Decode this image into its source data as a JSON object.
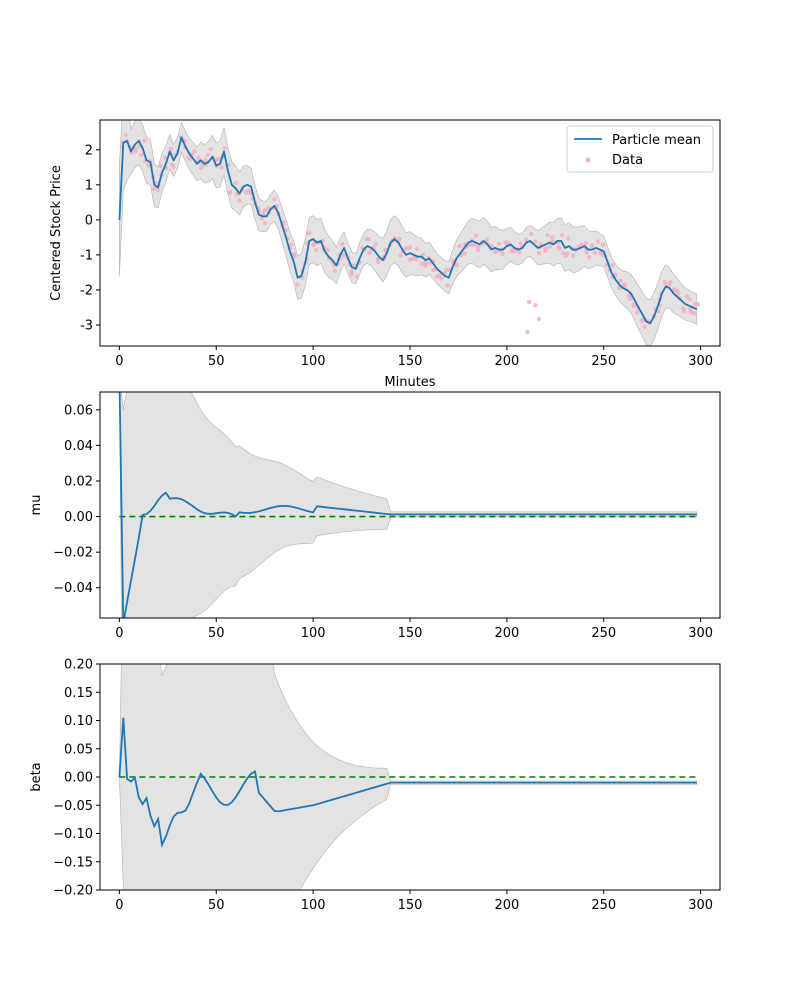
{
  "chart_data": [
    {
      "type": "line",
      "xlabel": "Minutes",
      "ylabel": "Centered Stock Price",
      "xlim": [
        -10,
        310
      ],
      "ylim": [
        -3.6,
        2.85
      ],
      "xticks": [
        0,
        50,
        100,
        150,
        200,
        250,
        300
      ],
      "yticks": [
        -3,
        -2,
        -1,
        0,
        1,
        2
      ],
      "legend_position": "upper right",
      "legend": [
        {
          "label": "Particle mean",
          "kind": "line",
          "color": "#1f77b4"
        },
        {
          "label": "Data",
          "kind": "marker",
          "color": "#f4aec2"
        }
      ],
      "series": [
        {
          "name": "Particle mean",
          "color": "#1f77b4",
          "x": [
            0,
            2,
            4,
            6,
            8,
            10,
            12,
            14,
            16,
            18,
            20,
            22,
            24,
            26,
            28,
            30,
            32,
            34,
            36,
            38,
            40,
            42,
            44,
            46,
            48,
            50,
            52,
            54,
            56,
            58,
            60,
            62,
            64,
            66,
            68,
            70,
            72,
            74,
            76,
            78,
            80,
            82,
            84,
            86,
            88,
            90,
            92,
            94,
            96,
            98,
            100,
            102,
            104,
            106,
            108,
            110,
            112,
            114,
            116,
            118,
            120,
            122,
            124,
            126,
            128,
            130,
            132,
            134,
            136,
            138,
            140,
            142,
            144,
            146,
            148,
            150,
            152,
            154,
            156,
            158,
            160,
            162,
            164,
            166,
            168,
            170,
            172,
            174,
            176,
            178,
            180,
            182,
            184,
            186,
            188,
            190,
            192,
            194,
            196,
            198,
            200,
            202,
            204,
            206,
            208,
            210,
            212,
            214,
            216,
            218,
            220,
            222,
            224,
            226,
            228,
            230,
            232,
            234,
            236,
            238,
            240,
            242,
            244,
            246,
            248,
            250,
            252,
            254,
            256,
            258,
            260,
            262,
            264,
            266,
            268,
            270,
            272,
            274,
            276,
            278,
            280,
            282,
            284,
            286,
            288,
            290,
            292,
            294,
            296,
            298
          ],
          "y": [
            0.0,
            2.2,
            2.25,
            1.95,
            2.15,
            2.25,
            2.05,
            1.7,
            1.65,
            1.0,
            0.92,
            1.35,
            1.6,
            1.95,
            1.7,
            1.9,
            2.35,
            2.1,
            1.9,
            1.75,
            1.6,
            1.7,
            1.6,
            1.65,
            1.8,
            1.55,
            1.6,
            1.95,
            1.4,
            1.0,
            0.9,
            0.75,
            0.95,
            1.0,
            0.95,
            0.5,
            0.15,
            0.1,
            0.1,
            0.3,
            0.4,
            0.2,
            -0.15,
            -0.5,
            -0.9,
            -1.2,
            -1.65,
            -1.6,
            -1.2,
            -0.6,
            -0.55,
            -0.65,
            -0.6,
            -0.9,
            -1.05,
            -1.15,
            -1.3,
            -1.0,
            -0.8,
            -1.1,
            -1.35,
            -1.4,
            -1.1,
            -0.85,
            -0.75,
            -0.8,
            -0.9,
            -1.05,
            -1.15,
            -0.95,
            -0.65,
            -0.55,
            -0.65,
            -0.85,
            -1.0,
            -0.95,
            -1.0,
            -1.05,
            -1.05,
            -1.15,
            -1.1,
            -1.25,
            -1.4,
            -1.5,
            -1.6,
            -1.65,
            -1.35,
            -1.1,
            -0.95,
            -0.8,
            -0.65,
            -0.6,
            -0.65,
            -0.7,
            -0.6,
            -0.7,
            -0.85,
            -0.8,
            -0.85,
            -0.85,
            -0.75,
            -0.7,
            -0.8,
            -0.85,
            -0.8,
            -0.65,
            -0.6,
            -0.7,
            -0.8,
            -0.75,
            -0.7,
            -0.65,
            -0.7,
            -0.6,
            -0.6,
            -0.8,
            -0.75,
            -0.85,
            -0.85,
            -0.8,
            -0.75,
            -0.85,
            -0.85,
            -0.8,
            -0.85,
            -0.9,
            -1.2,
            -1.5,
            -1.7,
            -1.85,
            -1.95,
            -2.0,
            -2.1,
            -2.3,
            -2.5,
            -2.7,
            -2.9,
            -2.95,
            -2.75,
            -2.45,
            -2.1,
            -1.9,
            -1.95,
            -2.1,
            -2.2,
            -2.3,
            -2.4,
            -2.45,
            -2.5,
            -2.55
          ],
          "note_unused": ""
        }
      ]
    },
    {
      "type": "line",
      "xlabel": "",
      "ylabel": "mu",
      "xlim": [
        -10,
        310
      ],
      "ylim": [
        -0.057,
        0.07
      ],
      "xticks": [
        0,
        50,
        100,
        150,
        200,
        250,
        300
      ],
      "yticks": [
        -0.04,
        -0.02,
        0.0,
        0.02,
        0.04,
        0.06
      ],
      "ytick_labels": [
        "−0.04",
        "−0.02",
        "0.00",
        "0.02",
        "0.04",
        "0.06"
      ]
    },
    {
      "type": "line",
      "xlabel": "",
      "ylabel": "beta",
      "xlim": [
        -10,
        310
      ],
      "ylim": [
        -0.2,
        0.2
      ],
      "xticks": [
        0,
        50,
        100,
        150,
        200,
        250,
        300
      ],
      "yticks": [
        -0.2,
        -0.15,
        -0.1,
        -0.05,
        0.0,
        0.05,
        0.1,
        0.15,
        0.2
      ],
      "ytick_labels": [
        "−0.20",
        "−0.15",
        "−0.10",
        "−0.05",
        "0.00",
        "0.05",
        "0.10",
        "0.15",
        "0.20"
      ]
    }
  ]
}
